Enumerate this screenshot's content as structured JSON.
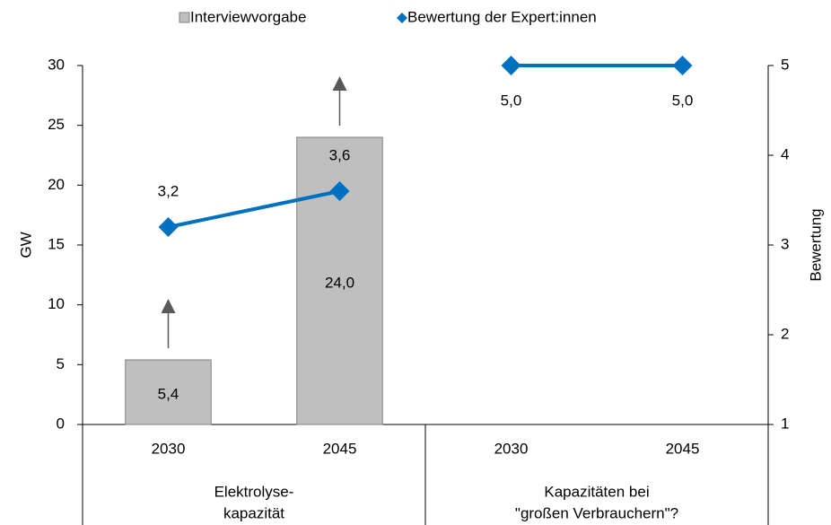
{
  "chart_data": {
    "type": "bar",
    "categories": [
      "2030",
      "2045",
      "2030",
      "2045"
    ],
    "groups": [
      {
        "label": [
          "Elektrolyse-",
          "kapazität"
        ],
        "size": 2
      },
      {
        "label": [
          "Kapazitäten bei",
          "\"großen Verbrauchern\"?"
        ],
        "size": 2
      }
    ],
    "series": [
      {
        "name": "Interviewvorgabe",
        "type": "bar",
        "color": "#bfbfbf",
        "edge": "#808080",
        "values": [
          5.4,
          24.0,
          null,
          null
        ],
        "value_labels": [
          "5,4",
          "24,0",
          null,
          null
        ]
      },
      {
        "name": "Bewertung der Expert:innen",
        "type": "line",
        "axis": "y2",
        "color": "#0070c0",
        "values": [
          3.2,
          3.6,
          5.0,
          5.0
        ],
        "value_labels": [
          "3,2",
          "3,6",
          "5,0",
          "5,0"
        ]
      }
    ],
    "ylabel": "GW",
    "y2label": "Bewertung",
    "ylim": [
      0,
      30
    ],
    "yticks": [
      0,
      5,
      10,
      15,
      20,
      25,
      30
    ],
    "y2lim": [
      1,
      5
    ],
    "y2ticks": [
      1,
      2,
      3,
      4,
      5
    ],
    "legend": "top"
  }
}
